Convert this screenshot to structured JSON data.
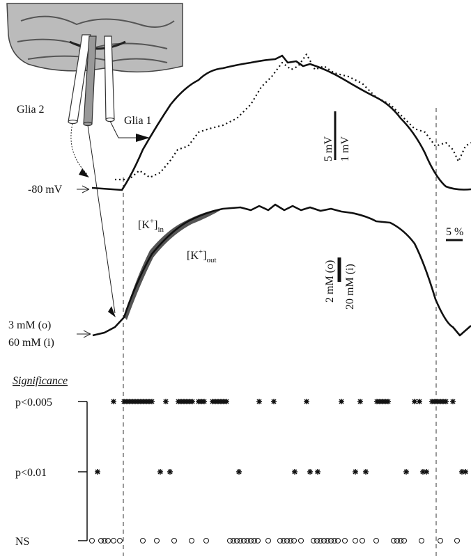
{
  "figure": {
    "labels": {
      "glia2": "Glia 2",
      "glia1": "Glia 1",
      "rest_potential": "-80 mV",
      "percent_scale": "5 %"
    },
    "voltage_scale": {
      "large": "5 mV",
      "small": "1 mV"
    },
    "k_in": {
      "base": "[K",
      "sup": "+",
      "close": "]",
      "sub": "in"
    },
    "k_out": {
      "base": "[K",
      "sup": "+",
      "close": "]",
      "sub": "out"
    },
    "conc_scale": {
      "outer": "2 mM (o)",
      "inner": "20 mM (i)"
    },
    "baseline": {
      "outer": "3 mM (o)",
      "inner": "60 mM (i)"
    },
    "significance": {
      "title": "Significance",
      "levels": [
        "p<0.005",
        "p<0.01",
        "NS"
      ]
    }
  }
}
